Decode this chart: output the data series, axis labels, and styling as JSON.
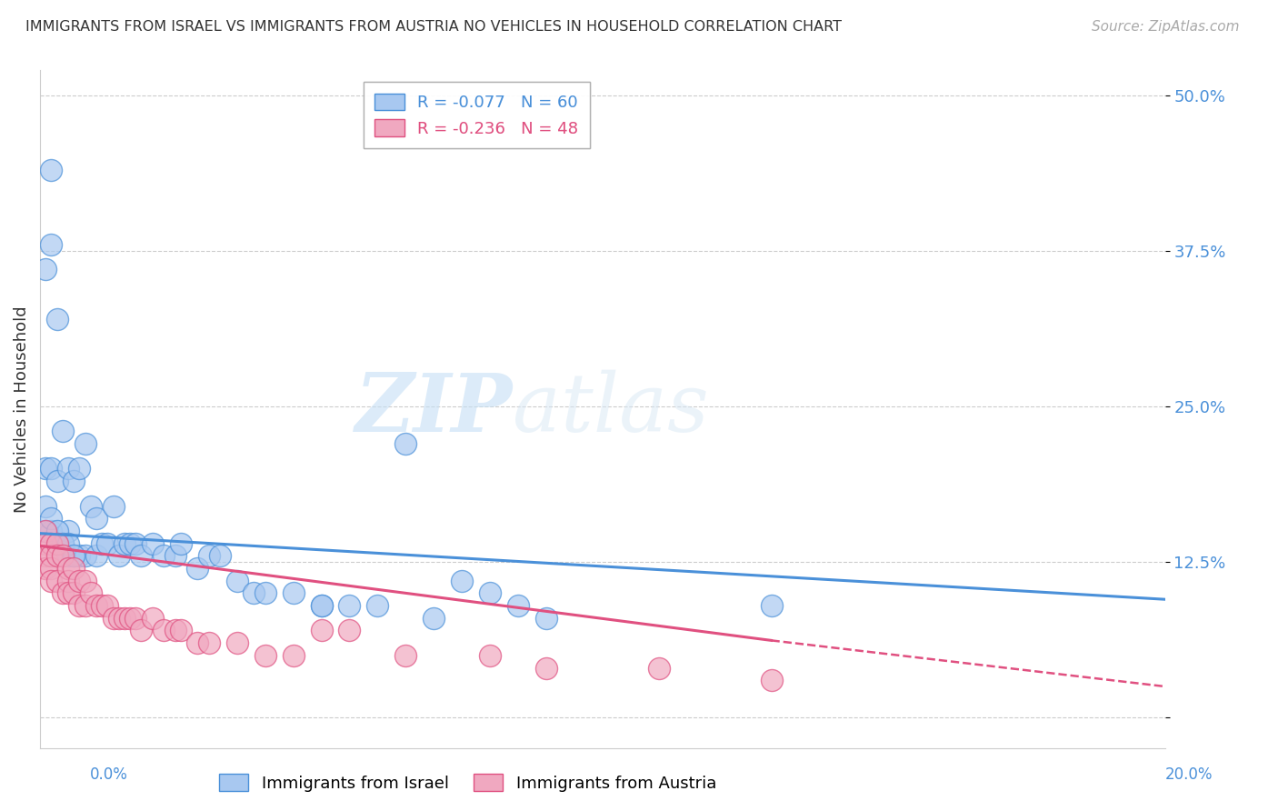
{
  "title": "IMMIGRANTS FROM ISRAEL VS IMMIGRANTS FROM AUSTRIA NO VEHICLES IN HOUSEHOLD CORRELATION CHART",
  "source": "Source: ZipAtlas.com",
  "ylabel": "No Vehicles in Household",
  "yticks": [
    0.0,
    0.125,
    0.25,
    0.375,
    0.5
  ],
  "ytick_labels": [
    "",
    "12.5%",
    "25.0%",
    "37.5%",
    "50.0%"
  ],
  "xlim": [
    0.0,
    0.2
  ],
  "ylim": [
    -0.025,
    0.52
  ],
  "legend_israel": "R = -0.077   N = 60",
  "legend_austria": "R = -0.236   N = 48",
  "israel_color": "#a8c8f0",
  "austria_color": "#f0a8c0",
  "israel_line_color": "#4a90d9",
  "austria_line_color": "#e05080",
  "background_color": "#ffffff",
  "watermark_zip": "ZIP",
  "watermark_atlas": "atlas",
  "israel_points_x": [
    0.001,
    0.001,
    0.001,
    0.002,
    0.002,
    0.002,
    0.003,
    0.003,
    0.003,
    0.004,
    0.004,
    0.005,
    0.005,
    0.005,
    0.006,
    0.006,
    0.007,
    0.007,
    0.008,
    0.008,
    0.009,
    0.01,
    0.01,
    0.011,
    0.012,
    0.013,
    0.014,
    0.015,
    0.016,
    0.017,
    0.018,
    0.02,
    0.022,
    0.024,
    0.025,
    0.028,
    0.03,
    0.032,
    0.035,
    0.038,
    0.04,
    0.045,
    0.05,
    0.055,
    0.06,
    0.07,
    0.075,
    0.08,
    0.085,
    0.09,
    0.001,
    0.002,
    0.003,
    0.004,
    0.005,
    0.006,
    0.05,
    0.065,
    0.13,
    0.002
  ],
  "israel_points_y": [
    0.36,
    0.2,
    0.17,
    0.44,
    0.2,
    0.15,
    0.32,
    0.19,
    0.14,
    0.23,
    0.14,
    0.2,
    0.15,
    0.13,
    0.19,
    0.13,
    0.2,
    0.13,
    0.22,
    0.13,
    0.17,
    0.16,
    0.13,
    0.14,
    0.14,
    0.17,
    0.13,
    0.14,
    0.14,
    0.14,
    0.13,
    0.14,
    0.13,
    0.13,
    0.14,
    0.12,
    0.13,
    0.13,
    0.11,
    0.1,
    0.1,
    0.1,
    0.09,
    0.09,
    0.09,
    0.08,
    0.11,
    0.1,
    0.09,
    0.08,
    0.15,
    0.16,
    0.15,
    0.14,
    0.14,
    0.13,
    0.09,
    0.22,
    0.09,
    0.38
  ],
  "austria_points_x": [
    0.001,
    0.001,
    0.001,
    0.001,
    0.002,
    0.002,
    0.002,
    0.002,
    0.003,
    0.003,
    0.003,
    0.004,
    0.004,
    0.005,
    0.005,
    0.005,
    0.006,
    0.006,
    0.007,
    0.007,
    0.008,
    0.008,
    0.009,
    0.01,
    0.011,
    0.012,
    0.013,
    0.014,
    0.015,
    0.016,
    0.017,
    0.018,
    0.02,
    0.022,
    0.024,
    0.025,
    0.028,
    0.03,
    0.035,
    0.04,
    0.045,
    0.05,
    0.055,
    0.065,
    0.08,
    0.09,
    0.11,
    0.13
  ],
  "austria_points_y": [
    0.15,
    0.14,
    0.13,
    0.12,
    0.14,
    0.13,
    0.12,
    0.11,
    0.14,
    0.13,
    0.11,
    0.13,
    0.1,
    0.12,
    0.11,
    0.1,
    0.12,
    0.1,
    0.11,
    0.09,
    0.11,
    0.09,
    0.1,
    0.09,
    0.09,
    0.09,
    0.08,
    0.08,
    0.08,
    0.08,
    0.08,
    0.07,
    0.08,
    0.07,
    0.07,
    0.07,
    0.06,
    0.06,
    0.06,
    0.05,
    0.05,
    0.07,
    0.07,
    0.05,
    0.05,
    0.04,
    0.04,
    0.03
  ]
}
